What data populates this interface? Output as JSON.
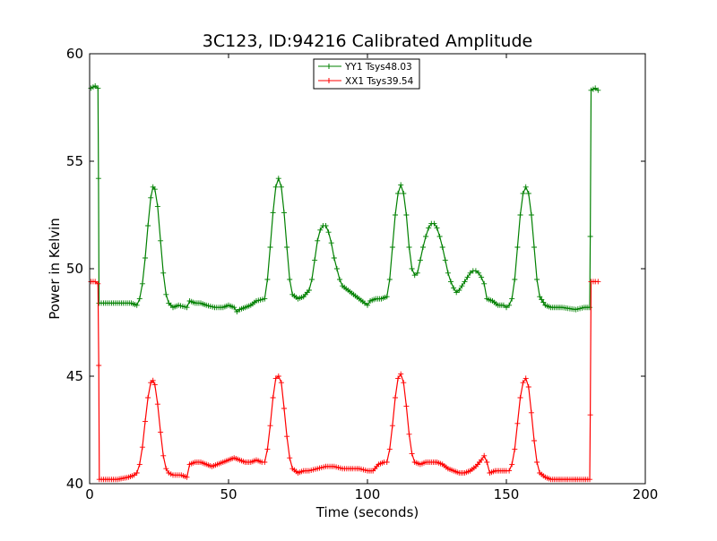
{
  "chart_data": {
    "type": "line",
    "title": "3C123, ID:94216 Calibrated Amplitude",
    "xlabel": "Time (seconds)",
    "ylabel": "Power in Kelvin",
    "xlim": [
      0,
      200
    ],
    "ylim": [
      40,
      60
    ],
    "xticks": [
      0,
      50,
      100,
      150,
      200
    ],
    "yticks": [
      40,
      45,
      50,
      55,
      60
    ],
    "grid": false,
    "legend_position": "top-center",
    "marker": "plus",
    "series": [
      {
        "name": "YY1 Tsys48.03",
        "color": "#008000",
        "points": [
          [
            0.5,
            58.4
          ],
          [
            2,
            58.5
          ],
          [
            3,
            58.4
          ],
          [
            3.2,
            54.2
          ],
          [
            3.4,
            48.4
          ],
          [
            5,
            48.4
          ],
          [
            10,
            48.4
          ],
          [
            15,
            48.4
          ],
          [
            17,
            48.3
          ],
          [
            18,
            48.6
          ],
          [
            19,
            49.3
          ],
          [
            20,
            50.5
          ],
          [
            21,
            52.0
          ],
          [
            22,
            53.3
          ],
          [
            22.8,
            53.8
          ],
          [
            23.5,
            53.7
          ],
          [
            24.5,
            52.9
          ],
          [
            25.5,
            51.3
          ],
          [
            26.5,
            49.8
          ],
          [
            27.5,
            48.8
          ],
          [
            28.5,
            48.4
          ],
          [
            30,
            48.2
          ],
          [
            32,
            48.3
          ],
          [
            35,
            48.2
          ],
          [
            36,
            48.5
          ],
          [
            38,
            48.4
          ],
          [
            40,
            48.4
          ],
          [
            42,
            48.3
          ],
          [
            45,
            48.2
          ],
          [
            48,
            48.2
          ],
          [
            50,
            48.3
          ],
          [
            52,
            48.2
          ],
          [
            53,
            48.0
          ],
          [
            54,
            48.1
          ],
          [
            56,
            48.2
          ],
          [
            58,
            48.3
          ],
          [
            60,
            48.5
          ],
          [
            63,
            48.6
          ],
          [
            64,
            49.5
          ],
          [
            65,
            51.0
          ],
          [
            66,
            52.6
          ],
          [
            67,
            53.8
          ],
          [
            68,
            54.2
          ],
          [
            69,
            53.8
          ],
          [
            70,
            52.6
          ],
          [
            71,
            51.0
          ],
          [
            72,
            49.5
          ],
          [
            73,
            48.8
          ],
          [
            75,
            48.6
          ],
          [
            77,
            48.7
          ],
          [
            79,
            49.0
          ],
          [
            80,
            49.5
          ],
          [
            81,
            50.4
          ],
          [
            82,
            51.3
          ],
          [
            83,
            51.8
          ],
          [
            84,
            52.0
          ],
          [
            85,
            52.0
          ],
          [
            86,
            51.7
          ],
          [
            87,
            51.2
          ],
          [
            88,
            50.5
          ],
          [
            89,
            50.0
          ],
          [
            90,
            49.5
          ],
          [
            91,
            49.2
          ],
          [
            93,
            49.0
          ],
          [
            95,
            48.8
          ],
          [
            97,
            48.6
          ],
          [
            99,
            48.4
          ],
          [
            100,
            48.3
          ],
          [
            101,
            48.5
          ],
          [
            103,
            48.6
          ],
          [
            105,
            48.6
          ],
          [
            107,
            48.7
          ],
          [
            108,
            49.5
          ],
          [
            109,
            51.0
          ],
          [
            110,
            52.5
          ],
          [
            111,
            53.5
          ],
          [
            112,
            53.9
          ],
          [
            113,
            53.5
          ],
          [
            114,
            52.5
          ],
          [
            115,
            51.0
          ],
          [
            116,
            50.0
          ],
          [
            117,
            49.7
          ],
          [
            118,
            49.8
          ],
          [
            119,
            50.4
          ],
          [
            120,
            51.0
          ],
          [
            121,
            51.5
          ],
          [
            122,
            51.9
          ],
          [
            123,
            52.1
          ],
          [
            124,
            52.1
          ],
          [
            125,
            51.9
          ],
          [
            126,
            51.5
          ],
          [
            127,
            51.0
          ],
          [
            128,
            50.4
          ],
          [
            129,
            49.8
          ],
          [
            130,
            49.4
          ],
          [
            131,
            49.1
          ],
          [
            132,
            48.9
          ],
          [
            133,
            49.0
          ],
          [
            134,
            49.2
          ],
          [
            135,
            49.4
          ],
          [
            136,
            49.6
          ],
          [
            137,
            49.8
          ],
          [
            138,
            49.9
          ],
          [
            139,
            49.9
          ],
          [
            140,
            49.8
          ],
          [
            141,
            49.6
          ],
          [
            142,
            49.3
          ],
          [
            143,
            48.6
          ],
          [
            145,
            48.5
          ],
          [
            147,
            48.3
          ],
          [
            149,
            48.3
          ],
          [
            150,
            48.2
          ],
          [
            151,
            48.3
          ],
          [
            152,
            48.6
          ],
          [
            153,
            49.5
          ],
          [
            154,
            51.0
          ],
          [
            155,
            52.5
          ],
          [
            156,
            53.5
          ],
          [
            157,
            53.8
          ],
          [
            158,
            53.5
          ],
          [
            159,
            52.5
          ],
          [
            160,
            51.0
          ],
          [
            161,
            49.5
          ],
          [
            162,
            48.7
          ],
          [
            164,
            48.3
          ],
          [
            166,
            48.2
          ],
          [
            170,
            48.2
          ],
          [
            175,
            48.1
          ],
          [
            178,
            48.2
          ],
          [
            180,
            48.2
          ],
          [
            180.2,
            51.5
          ],
          [
            180.5,
            58.3
          ],
          [
            182,
            58.4
          ],
          [
            183,
            58.3
          ]
        ]
      },
      {
        "name": "XX1 Tsys39.54",
        "color": "#ff0000",
        "points": [
          [
            0.5,
            49.4
          ],
          [
            2,
            49.4
          ],
          [
            3,
            49.3
          ],
          [
            3.3,
            45.5
          ],
          [
            3.5,
            40.2
          ],
          [
            5,
            40.2
          ],
          [
            10,
            40.2
          ],
          [
            14,
            40.3
          ],
          [
            16,
            40.4
          ],
          [
            17,
            40.5
          ],
          [
            18,
            40.9
          ],
          [
            19,
            41.7
          ],
          [
            20,
            42.9
          ],
          [
            21,
            44.0
          ],
          [
            22,
            44.7
          ],
          [
            22.8,
            44.8
          ],
          [
            23.5,
            44.6
          ],
          [
            24.5,
            43.7
          ],
          [
            25.5,
            42.4
          ],
          [
            26.5,
            41.3
          ],
          [
            27.5,
            40.7
          ],
          [
            28.5,
            40.5
          ],
          [
            30,
            40.4
          ],
          [
            33,
            40.4
          ],
          [
            35,
            40.3
          ],
          [
            36,
            40.9
          ],
          [
            38,
            41.0
          ],
          [
            40,
            41.0
          ],
          [
            42,
            40.9
          ],
          [
            44,
            40.8
          ],
          [
            46,
            40.9
          ],
          [
            48,
            41.0
          ],
          [
            50,
            41.1
          ],
          [
            52,
            41.2
          ],
          [
            54,
            41.1
          ],
          [
            56,
            41.0
          ],
          [
            58,
            41.0
          ],
          [
            60,
            41.1
          ],
          [
            62,
            41.0
          ],
          [
            63,
            41.0
          ],
          [
            64,
            41.6
          ],
          [
            65,
            42.7
          ],
          [
            66,
            44.0
          ],
          [
            67,
            44.9
          ],
          [
            68,
            45.0
          ],
          [
            69,
            44.7
          ],
          [
            70,
            43.5
          ],
          [
            71,
            42.2
          ],
          [
            72,
            41.2
          ],
          [
            73,
            40.7
          ],
          [
            75,
            40.5
          ],
          [
            77,
            40.6
          ],
          [
            79,
            40.6
          ],
          [
            82,
            40.7
          ],
          [
            85,
            40.8
          ],
          [
            88,
            40.8
          ],
          [
            91,
            40.7
          ],
          [
            94,
            40.7
          ],
          [
            97,
            40.7
          ],
          [
            100,
            40.6
          ],
          [
            102,
            40.6
          ],
          [
            104,
            40.9
          ],
          [
            106,
            41.0
          ],
          [
            107,
            41.0
          ],
          [
            108,
            41.6
          ],
          [
            109,
            42.7
          ],
          [
            110,
            44.0
          ],
          [
            111,
            44.9
          ],
          [
            112,
            45.1
          ],
          [
            113,
            44.7
          ],
          [
            114,
            43.6
          ],
          [
            115,
            42.3
          ],
          [
            116,
            41.4
          ],
          [
            117,
            41.0
          ],
          [
            119,
            40.9
          ],
          [
            121,
            41.0
          ],
          [
            123,
            41.0
          ],
          [
            125,
            41.0
          ],
          [
            127,
            40.9
          ],
          [
            129,
            40.7
          ],
          [
            131,
            40.6
          ],
          [
            133,
            40.5
          ],
          [
            135,
            40.5
          ],
          [
            137,
            40.6
          ],
          [
            139,
            40.8
          ],
          [
            141,
            41.1
          ],
          [
            142,
            41.3
          ],
          [
            143,
            41.0
          ],
          [
            144,
            40.5
          ],
          [
            146,
            40.6
          ],
          [
            148,
            40.6
          ],
          [
            150,
            40.6
          ],
          [
            151,
            40.6
          ],
          [
            152,
            40.9
          ],
          [
            153,
            41.6
          ],
          [
            154,
            42.8
          ],
          [
            155,
            44.0
          ],
          [
            156,
            44.7
          ],
          [
            157,
            44.9
          ],
          [
            158,
            44.5
          ],
          [
            159,
            43.3
          ],
          [
            160,
            42.0
          ],
          [
            161,
            41.0
          ],
          [
            162,
            40.5
          ],
          [
            164,
            40.3
          ],
          [
            166,
            40.2
          ],
          [
            170,
            40.2
          ],
          [
            175,
            40.2
          ],
          [
            180,
            40.2
          ],
          [
            180.2,
            43.2
          ],
          [
            180.5,
            49.4
          ],
          [
            182,
            49.4
          ],
          [
            183,
            49.4
          ]
        ]
      }
    ]
  }
}
